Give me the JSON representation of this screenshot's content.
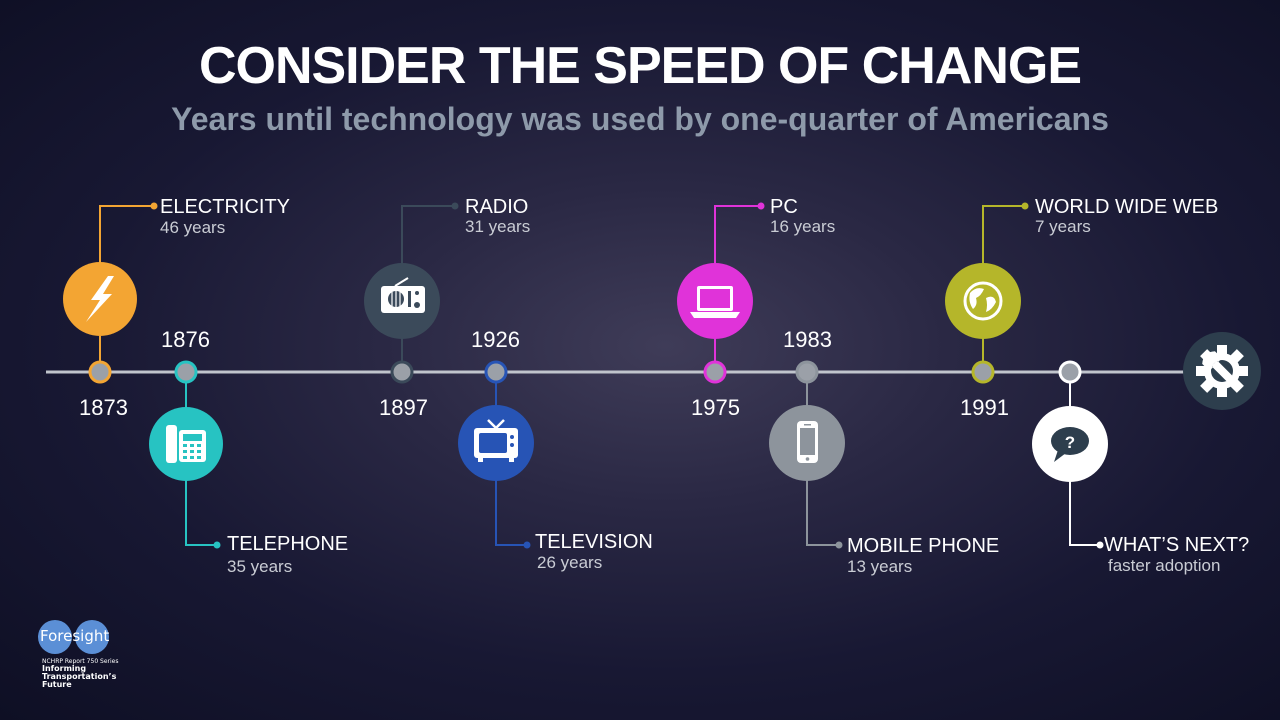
{
  "header": {
    "title": "CONSIDER THE SPEED OF CHANGE",
    "subtitle": "Years until technology was used by one-quarter of Americans"
  },
  "colors": {
    "electricity": "#f3a533",
    "telephone": "#27c3c2",
    "radio": "#3b4a5a",
    "television": "#2754b5",
    "pc": "#e033d9",
    "mobile": "#8d949c",
    "web": "#b5b62a",
    "next": "#ffffff",
    "settings": "#2d3e4d",
    "axis": "#c0c4cc"
  },
  "technologies": [
    {
      "name": "ELECTRICITY",
      "years": "46 years",
      "year": "1873",
      "icon": "lightning-icon",
      "color": "#f3a533"
    },
    {
      "name": "TELEPHONE",
      "years": "35 years",
      "year": "1876",
      "icon": "telephone-icon",
      "color": "#27c3c2"
    },
    {
      "name": "RADIO",
      "years": "31 years",
      "year": "1897",
      "icon": "radio-icon",
      "color": "#3b4a5a"
    },
    {
      "name": "TELEVISION",
      "years": "26 years",
      "year": "1926",
      "icon": "television-icon",
      "color": "#2754b5"
    },
    {
      "name": "PC",
      "years": "16 years",
      "year": "1975",
      "icon": "laptop-icon",
      "color": "#e033d9"
    },
    {
      "name": "MOBILE PHONE",
      "years": "13 years",
      "year": "1983",
      "icon": "smartphone-icon",
      "color": "#8d949c"
    },
    {
      "name": "WORLD WIDE WEB",
      "years": "7 years",
      "year": "1991",
      "icon": "globe-icon",
      "color": "#b5b62a"
    },
    {
      "name": "WHAT’S NEXT?",
      "years": "faster adoption",
      "icon": "question-bubble-icon",
      "color": "#ffffff"
    }
  ],
  "end_icon": "gear-wrench-icon",
  "logo": {
    "word": "Foresight",
    "small": "NCHRP Report 750 Series",
    "bold": "Informing\nTransportation’s\nFuture"
  }
}
